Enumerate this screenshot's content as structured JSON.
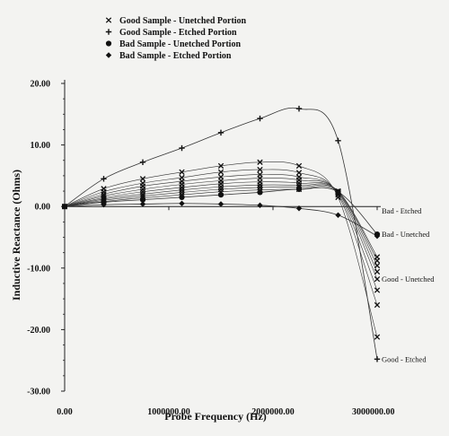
{
  "chart_data": {
    "type": "line",
    "title": "",
    "xlabel": "Probe Frequency (Hz)",
    "ylabel": "Inductive Reactance (Ohms)",
    "xlim": [
      0,
      3000000
    ],
    "ylim": [
      -30,
      20
    ],
    "x_ticks": [
      "0.00",
      "1000000.00",
      "2000000.00",
      "3000000.00"
    ],
    "y_ticks": [
      "20.00",
      "10.00",
      "0.00",
      "-10.00",
      "-20.00",
      "-30.00"
    ],
    "legend_position": "top-left",
    "grid": false,
    "x": [
      0,
      375000,
      750000,
      1125000,
      1500000,
      1875000,
      2250000,
      2625000,
      3000000
    ],
    "series": [
      {
        "name": "Good Sample - Etched Portion",
        "marker": "plus",
        "values": [
          0,
          4.5,
          7.2,
          9.5,
          12.0,
          14.3,
          15.9,
          10.7,
          -24.8
        ]
      },
      {
        "name": "Good Sample - Unetched Portion",
        "marker": "x",
        "values": [
          0,
          2.9,
          4.5,
          5.6,
          6.6,
          7.2,
          6.6,
          1.5,
          -21.2
        ]
      },
      {
        "name": "Good Sample - Unetched Portion",
        "marker": "x",
        "values": [
          0,
          2.4,
          3.8,
          4.7,
          5.6,
          6.0,
          5.5,
          1.9,
          -16.0
        ]
      },
      {
        "name": "Good Sample - Unetched Portion",
        "marker": "x",
        "values": [
          0,
          2.0,
          3.3,
          4.1,
          4.8,
          5.2,
          4.8,
          2.1,
          -13.6
        ]
      },
      {
        "name": "Good Sample - Unetched Portion",
        "marker": "x",
        "values": [
          0,
          1.7,
          2.8,
          3.6,
          4.2,
          4.6,
          4.3,
          2.3,
          -11.8
        ]
      },
      {
        "name": "Good Sample - Unetched Portion",
        "marker": "x",
        "values": [
          0,
          1.4,
          2.4,
          3.1,
          3.7,
          4.0,
          3.8,
          2.4,
          -10.6
        ]
      },
      {
        "name": "Good Sample - Unetched Portion",
        "marker": "x",
        "values": [
          0,
          1.2,
          2.0,
          2.7,
          3.2,
          3.5,
          3.4,
          2.5,
          -9.6
        ]
      },
      {
        "name": "Good Sample - Unetched Portion",
        "marker": "x",
        "values": [
          0,
          1.0,
          1.7,
          2.3,
          2.8,
          3.1,
          3.1,
          2.5,
          -8.8
        ]
      },
      {
        "name": "Good Sample - Unetched Portion",
        "marker": "x",
        "values": [
          0,
          0.8,
          1.4,
          1.9,
          2.4,
          2.7,
          2.8,
          2.4,
          -8.2
        ]
      },
      {
        "name": "Bad Sample - Unetched Portion",
        "marker": "circle",
        "values": [
          0,
          0.7,
          1.1,
          1.5,
          1.9,
          2.3,
          2.8,
          2.4,
          -4.5
        ]
      },
      {
        "name": "Bad Sample - Etched Portion",
        "marker": "diamond",
        "values": [
          0,
          0.3,
          0.4,
          0.5,
          0.4,
          0.2,
          -0.3,
          -1.4,
          -4.8
        ]
      }
    ],
    "annotations": [
      {
        "text": "Bad - Etched",
        "y": -0.7
      },
      {
        "text": "Bad - Unetched",
        "y": -4.5
      },
      {
        "text": "Good - Unetched",
        "y": -11.8
      },
      {
        "text": "Good - Etched",
        "y": -24.8
      }
    ]
  },
  "legend": [
    {
      "marker": "x",
      "label": "Good Sample - Unetched Portion"
    },
    {
      "marker": "plus",
      "label": "Good Sample - Etched Portion"
    },
    {
      "marker": "circle",
      "label": "Bad Sample - Unetched Portion"
    },
    {
      "marker": "diamond",
      "label": "Bad Sample - Etched Portion"
    }
  ]
}
